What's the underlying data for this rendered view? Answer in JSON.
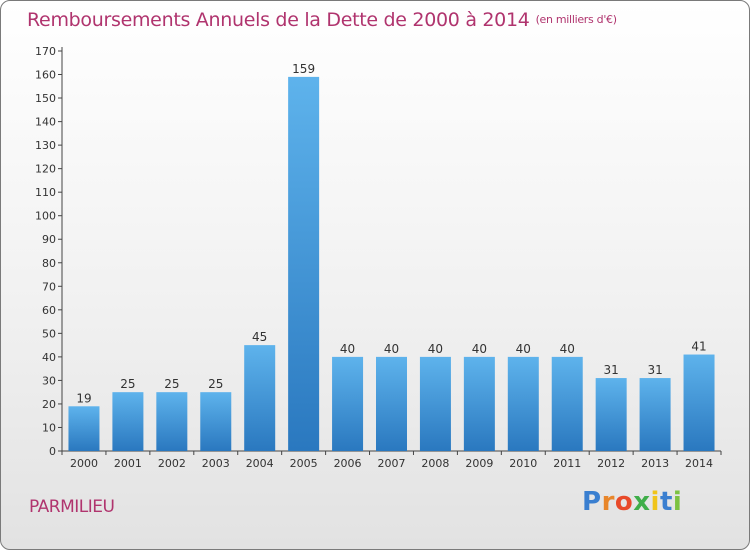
{
  "chart_data": {
    "type": "bar",
    "title": "Remboursements Annuels de la Dette de 2000 à 2014",
    "unit_note": "(en milliers d'€)",
    "categories": [
      "2000",
      "2001",
      "2002",
      "2003",
      "2004",
      "2005",
      "2006",
      "2007",
      "2008",
      "2009",
      "2010",
      "2011",
      "2012",
      "2013",
      "2014"
    ],
    "values": [
      19,
      25,
      25,
      25,
      45,
      159,
      40,
      40,
      40,
      40,
      40,
      40,
      31,
      31,
      41
    ],
    "ylim": [
      0,
      170
    ],
    "yticks": [
      0,
      10,
      20,
      30,
      40,
      50,
      60,
      70,
      80,
      90,
      100,
      110,
      120,
      130,
      140,
      150,
      160,
      170
    ],
    "xlabel": "",
    "ylabel": "",
    "grid": false,
    "bar_color": "#4a9fdf"
  },
  "footer": {
    "commune": "PARMILIEU",
    "logo_letters": [
      "P",
      "r",
      "o",
      "x",
      "i",
      "t",
      "i"
    ]
  }
}
